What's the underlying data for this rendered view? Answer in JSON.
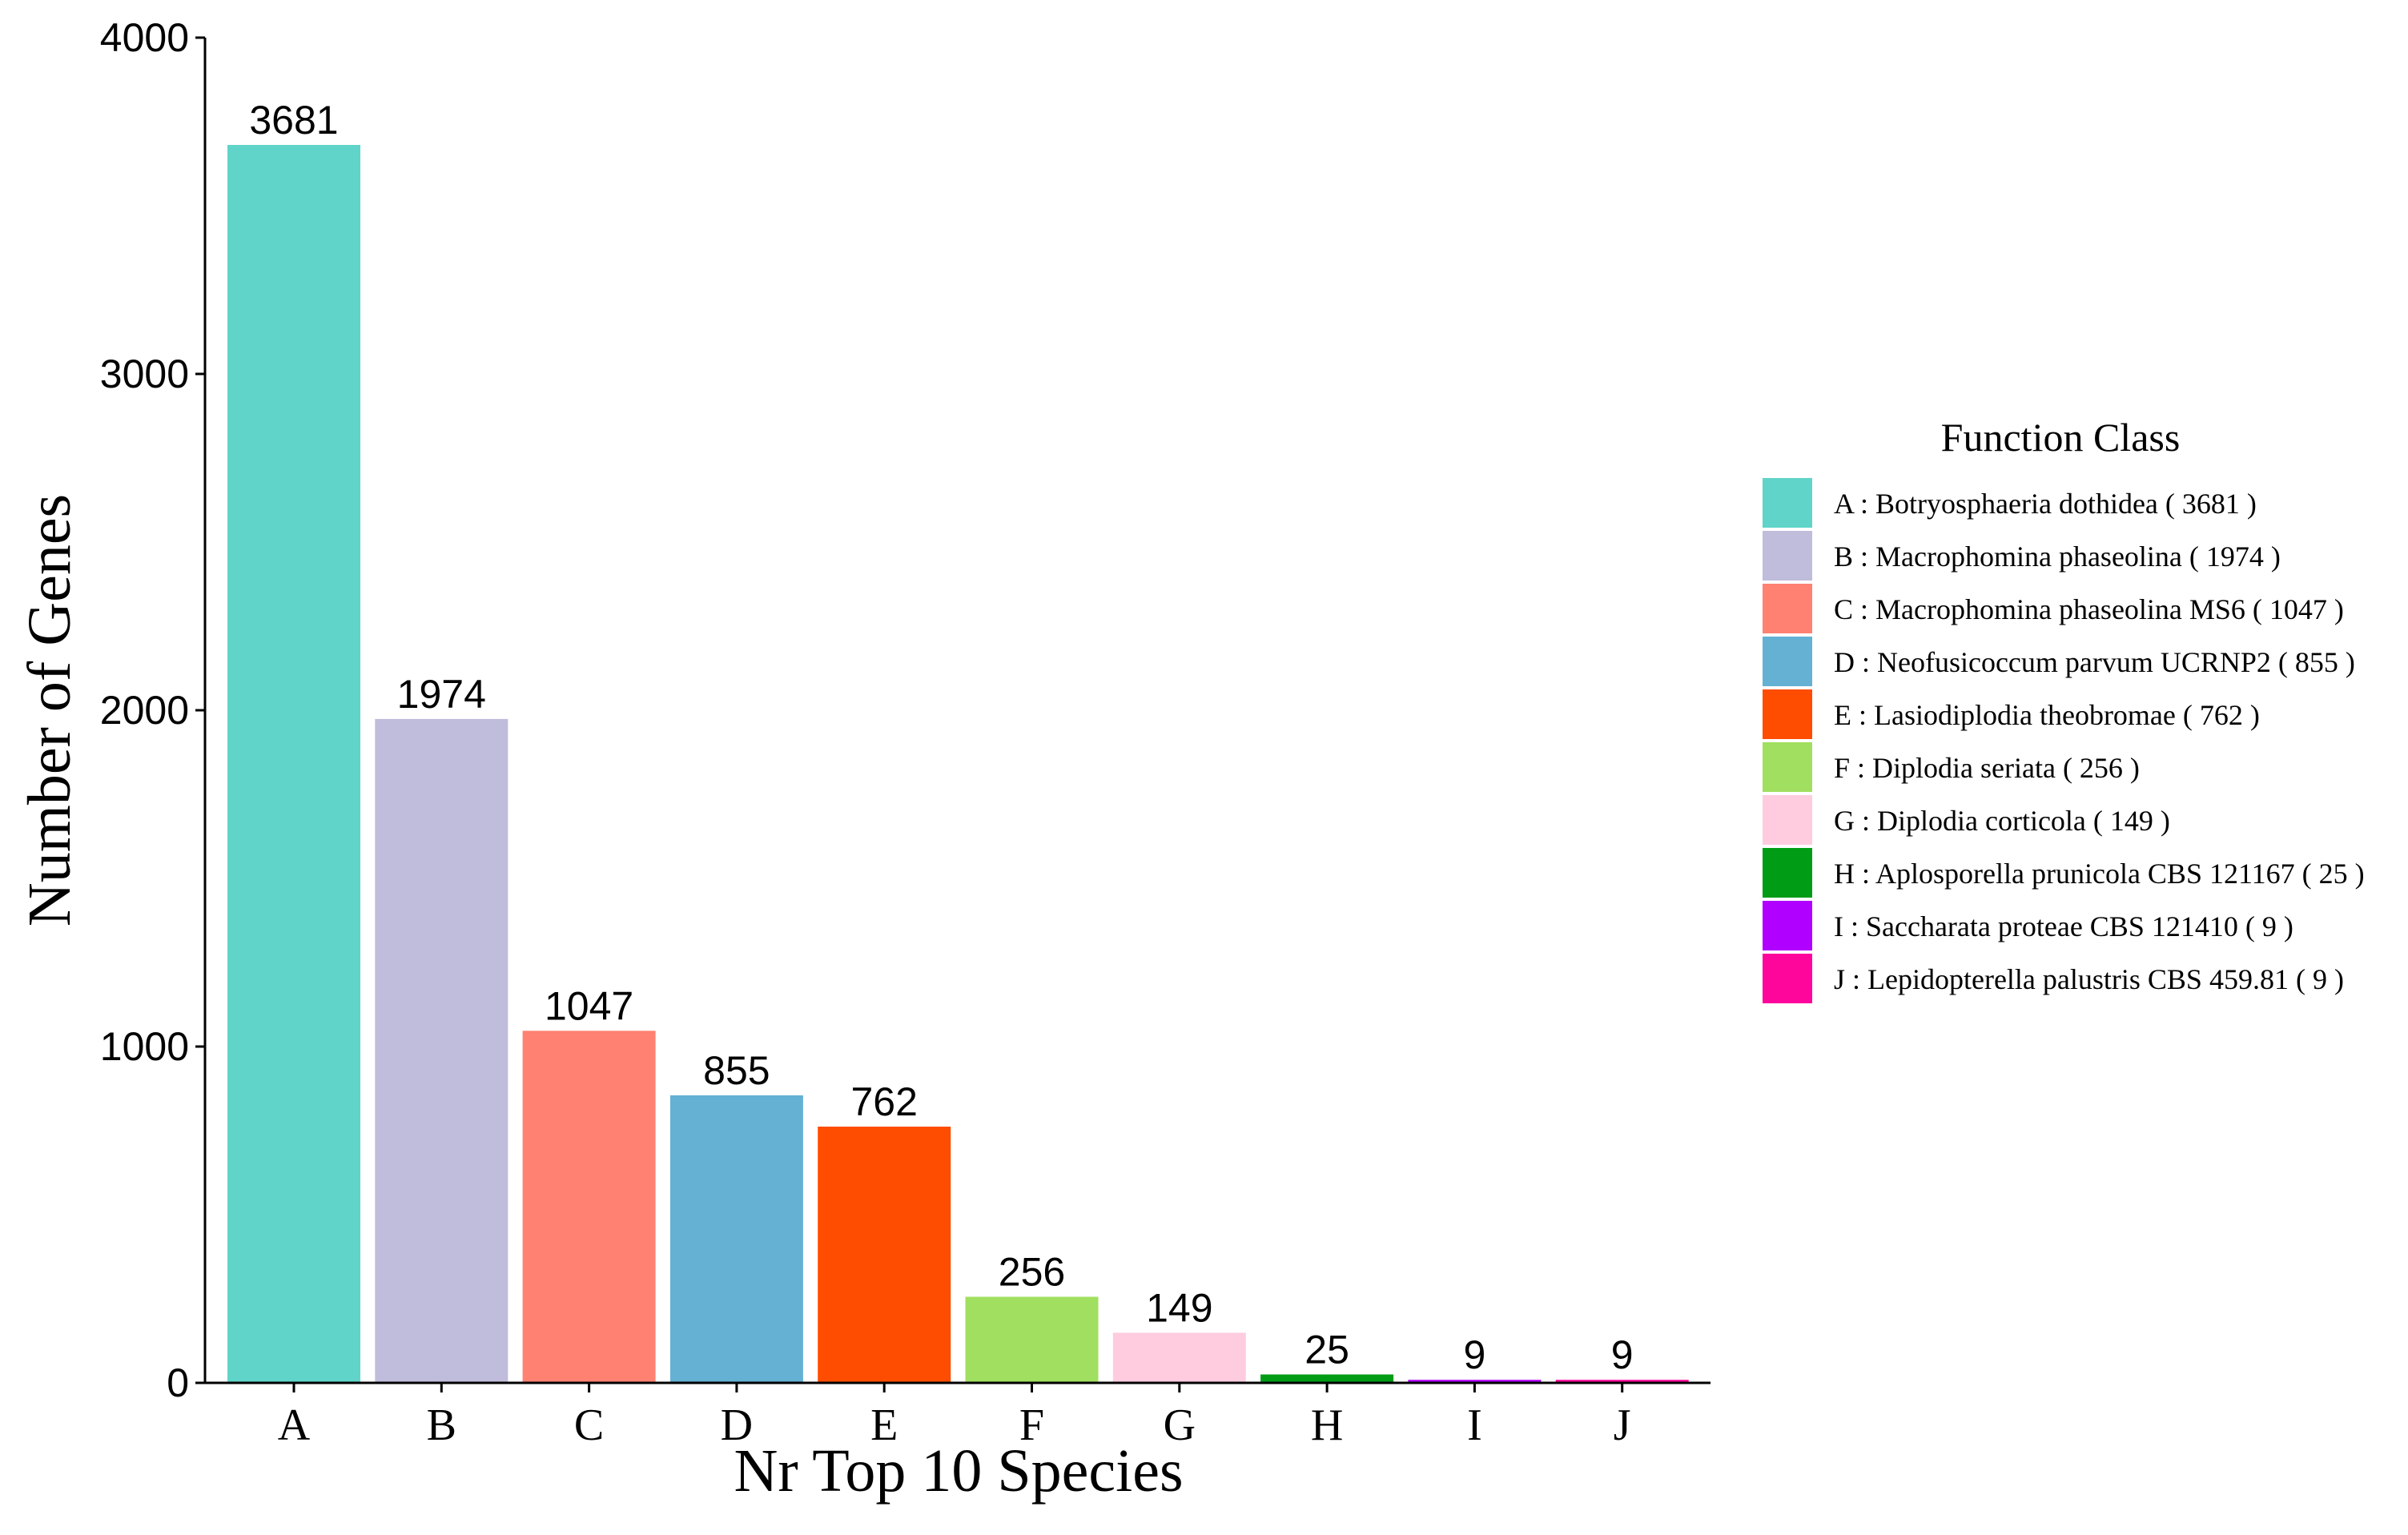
{
  "chart_data": {
    "type": "bar",
    "categories": [
      "A",
      "B",
      "C",
      "D",
      "E",
      "F",
      "G",
      "H",
      "I",
      "J"
    ],
    "values": [
      3681,
      1974,
      1047,
      855,
      762,
      256,
      149,
      25,
      9,
      9
    ],
    "data_labels": [
      "3681",
      "1974",
      "1047",
      "855",
      "762",
      "256",
      "149",
      "25",
      "9",
      "9"
    ],
    "colors": [
      "#60d4c8",
      "#bfbcdc",
      "#fe8172",
      "#64b1d4",
      "#fe4d00",
      "#a0df5f",
      "#ffccdf",
      "#009c16",
      "#b000ff",
      "#fe069c"
    ],
    "xlabel": "Nr Top 10 Species",
    "ylabel": "Number of Genes",
    "ylim": [
      0,
      4000
    ],
    "yticks": [
      0,
      1000,
      2000,
      3000,
      4000
    ],
    "ytick_labels": [
      "0",
      "1000",
      "2000",
      "3000",
      "4000"
    ],
    "grid": false,
    "legend": {
      "title": "Function Class",
      "placement": "right",
      "entries": [
        "A : Botryosphaeria dothidea ( 3681 )",
        "B : Macrophomina phaseolina ( 1974 )",
        "C : Macrophomina phaseolina MS6 ( 1047 )",
        "D : Neofusicoccum parvum UCRNP2 ( 855 )",
        "E : Lasiodiplodia theobromae ( 762 )",
        "F : Diplodia seriata ( 256 )",
        "G : Diplodia corticola ( 149 )",
        "H : Aplosporella prunicola CBS 121167 ( 25 )",
        "I : Saccharata proteae CBS 121410 ( 9 )",
        "J : Lepidopterella palustris CBS 459.81 ( 9 )"
      ]
    }
  }
}
